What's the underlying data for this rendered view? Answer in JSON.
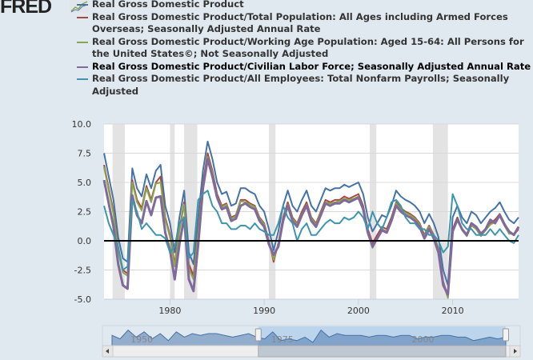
{
  "logo": {
    "text": "FRED"
  },
  "chart_data": {
    "type": "line",
    "title": "",
    "xlabel": "",
    "ylabel": "",
    "xlim": [
      1973,
      2017
    ],
    "ylim": [
      -5,
      10
    ],
    "grid": true,
    "legend_position": "top",
    "y_ticks": [
      "10.0",
      "7.5",
      "5.0",
      "2.5",
      "0.0",
      "-2.5",
      "-5.0"
    ],
    "y_tick_values": [
      10,
      7.5,
      5,
      2.5,
      0,
      -2.5,
      -5
    ],
    "x_ticks": [
      "1980",
      "1990",
      "2000",
      "2010"
    ],
    "x_tick_values": [
      1980,
      1990,
      2000,
      2010
    ],
    "x_start": 1973,
    "x_step_years": 0.5,
    "recessions": [
      [
        1973.9,
        1975.2
      ],
      [
        1980.0,
        1980.5
      ],
      [
        1981.5,
        1982.9
      ],
      [
        1990.5,
        1991.2
      ],
      [
        2001.2,
        2001.9
      ],
      [
        2007.9,
        2009.5
      ]
    ],
    "series": [
      {
        "name": "Real Gross Domestic Product",
        "color": "#4572a7",
        "values": [
          7.5,
          5.5,
          3.5,
          0.3,
          -1.5,
          -1.8,
          6.2,
          4.5,
          3.8,
          5.7,
          4.5,
          6.0,
          6.5,
          3.0,
          1.5,
          -1.0,
          2.0,
          4.3,
          -1.0,
          -2.0,
          2.0,
          6.0,
          8.5,
          7.0,
          5.0,
          4.0,
          4.2,
          3.0,
          3.2,
          4.5,
          4.5,
          4.2,
          4.0,
          3.0,
          2.5,
          1.0,
          -0.8,
          0.8,
          3.0,
          4.3,
          3.0,
          2.5,
          3.5,
          4.3,
          3.0,
          2.5,
          3.5,
          4.5,
          4.3,
          4.5,
          4.5,
          4.8,
          4.6,
          4.8,
          5.0,
          4.0,
          2.0,
          0.8,
          1.5,
          2.2,
          2.0,
          3.0,
          4.3,
          3.8,
          3.5,
          3.3,
          3.0,
          2.5,
          1.5,
          2.3,
          1.5,
          0.3,
          -2.5,
          -3.8,
          2.0,
          3.0,
          2.0,
          1.5,
          2.5,
          2.2,
          1.5,
          2.0,
          2.5,
          2.8,
          3.3,
          2.5,
          1.8,
          1.5,
          2.0
        ]
      },
      {
        "name": "Real Gross Domestic Product/Total Population: All Ages including Armed Forces Overseas; Seasonally Adjusted Annual Rate",
        "color": "#aa4643",
        "values": [
          6.5,
          4.5,
          2.5,
          -0.7,
          -2.5,
          -2.8,
          5.2,
          3.5,
          2.8,
          4.7,
          3.5,
          5.0,
          5.5,
          2.0,
          0.5,
          -2.0,
          1.0,
          3.3,
          -2.0,
          -3.0,
          1.0,
          5.0,
          7.5,
          6.0,
          4.0,
          3.0,
          3.2,
          2.0,
          2.2,
          3.5,
          3.5,
          3.2,
          3.0,
          2.0,
          1.5,
          0.0,
          -1.8,
          -0.2,
          2.0,
          3.3,
          2.0,
          1.5,
          2.5,
          3.3,
          2.0,
          1.5,
          2.5,
          3.5,
          3.3,
          3.5,
          3.5,
          3.8,
          3.6,
          3.8,
          4.0,
          3.0,
          1.0,
          -0.2,
          0.5,
          1.2,
          1.0,
          2.0,
          3.3,
          2.8,
          2.5,
          2.3,
          2.0,
          1.5,
          0.5,
          1.3,
          0.5,
          -0.7,
          -3.5,
          -4.8,
          1.0,
          2.0,
          1.0,
          0.5,
          1.5,
          1.2,
          0.5,
          1.0,
          1.5,
          1.8,
          2.3,
          1.5,
          0.8,
          0.5,
          1.0
        ]
      },
      {
        "name": "Real Gross Domestic Product/Working Age Population: Aged 15-64: All Persons for the United States©; Not Seasonally Adjusted",
        "color": "#89a54e",
        "values": [
          6.3,
          4.3,
          2.3,
          -0.9,
          -2.7,
          -3.0,
          5.0,
          3.3,
          2.6,
          4.5,
          3.3,
          4.9,
          5.0,
          1.8,
          0.3,
          -2.2,
          0.8,
          3.1,
          -2.4,
          -3.3,
          0.8,
          4.8,
          7.2,
          5.8,
          3.8,
          2.9,
          3.1,
          1.9,
          2.1,
          3.4,
          3.3,
          3.1,
          2.9,
          1.9,
          1.4,
          -0.1,
          -1.6,
          -0.3,
          1.8,
          3.1,
          1.9,
          1.4,
          2.3,
          3.1,
          1.9,
          1.4,
          2.4,
          3.3,
          3.2,
          3.3,
          3.4,
          3.6,
          3.5,
          3.6,
          3.8,
          2.8,
          0.8,
          -0.6,
          0.2,
          1.0,
          0.8,
          1.8,
          3.2,
          2.7,
          2.4,
          2.2,
          1.9,
          1.4,
          0.4,
          1.2,
          0.4,
          -0.8,
          -3.6,
          -4.9,
          0.9,
          1.8,
          0.9,
          0.4,
          1.3,
          1.0,
          0.4,
          0.9,
          1.4,
          1.6,
          2.1,
          1.3,
          0.6,
          0.6,
          1.2
        ]
      },
      {
        "name": "Real Gross Domestic Product/Civilian Labor Force; Seasonally Adjusted Annual Rate",
        "color": "#80699b",
        "values": [
          5.2,
          3.2,
          1.2,
          -2.0,
          -3.8,
          -4.1,
          3.9,
          2.2,
          1.5,
          3.4,
          2.2,
          3.7,
          3.8,
          0.7,
          -0.8,
          -3.3,
          -0.3,
          2.0,
          -3.3,
          -4.3,
          -0.3,
          4.5,
          7.0,
          5.5,
          3.7,
          2.7,
          2.9,
          1.7,
          1.9,
          3.0,
          3.2,
          2.9,
          2.7,
          1.7,
          1.2,
          -0.3,
          -1.2,
          -0.5,
          1.7,
          3.0,
          1.7,
          1.2,
          2.2,
          3.0,
          1.7,
          1.2,
          2.2,
          3.2,
          3.0,
          3.2,
          3.2,
          3.5,
          3.3,
          3.5,
          3.7,
          2.7,
          0.7,
          -0.5,
          0.2,
          0.9,
          0.7,
          1.7,
          3.0,
          2.5,
          2.2,
          2.0,
          1.7,
          1.2,
          0.2,
          1.0,
          0.2,
          -1.0,
          -3.8,
          -4.6,
          0.8,
          1.8,
          1.0,
          0.5,
          1.5,
          1.2,
          0.6,
          1.0,
          1.8,
          1.5,
          2.2,
          1.4,
          0.8,
          0.5,
          1.2
        ]
      },
      {
        "name": "Real Gross Domestic Product/All Employees: Total Nonfarm Payrolls; Seasonally Adjusted",
        "color": "#3d96ae",
        "values": [
          3.0,
          1.5,
          0.5,
          -0.5,
          -2.5,
          -2.2,
          3.5,
          2.5,
          1.0,
          1.5,
          1.0,
          0.5,
          0.5,
          0.2,
          -1.0,
          -0.5,
          1.5,
          2.0,
          -1.5,
          -1.0,
          3.5,
          4.0,
          4.3,
          3.0,
          2.5,
          1.5,
          1.5,
          1.0,
          1.0,
          1.3,
          1.3,
          1.0,
          1.5,
          1.0,
          0.8,
          0.5,
          0.5,
          1.5,
          3.0,
          2.0,
          1.5,
          0.0,
          1.0,
          1.5,
          0.5,
          0.5,
          1.0,
          1.5,
          1.8,
          1.5,
          1.5,
          2.0,
          1.8,
          2.0,
          2.5,
          2.0,
          1.0,
          2.5,
          1.5,
          1.0,
          2.0,
          3.3,
          3.5,
          3.0,
          2.0,
          1.5,
          1.5,
          1.0,
          1.0,
          0.5,
          0.5,
          0.0,
          -1.0,
          -0.5,
          4.0,
          3.0,
          1.5,
          1.0,
          1.0,
          0.5,
          0.5,
          0.5,
          1.0,
          0.5,
          1.0,
          0.5,
          0.0,
          -0.2,
          0.5
        ]
      }
    ],
    "navigator": {
      "labels": [
        "1950",
        "1975",
        "2000"
      ],
      "label_years": [
        1950,
        1975,
        2000
      ],
      "range": [
        1947,
        2017
      ],
      "selected": [
        1973,
        2017
      ],
      "values": [
        4,
        2,
        7,
        3,
        6,
        2,
        5,
        1,
        6,
        3,
        5,
        4,
        5,
        5,
        4,
        3,
        4,
        5,
        3,
        2,
        6,
        1,
        2,
        1,
        3,
        0,
        7,
        3,
        5,
        4,
        4,
        4,
        3,
        4,
        4,
        3,
        4,
        4,
        2,
        3,
        3,
        4,
        4,
        3,
        3,
        1,
        2,
        3,
        2,
        3
      ]
    },
    "highlighted_series": 3
  }
}
